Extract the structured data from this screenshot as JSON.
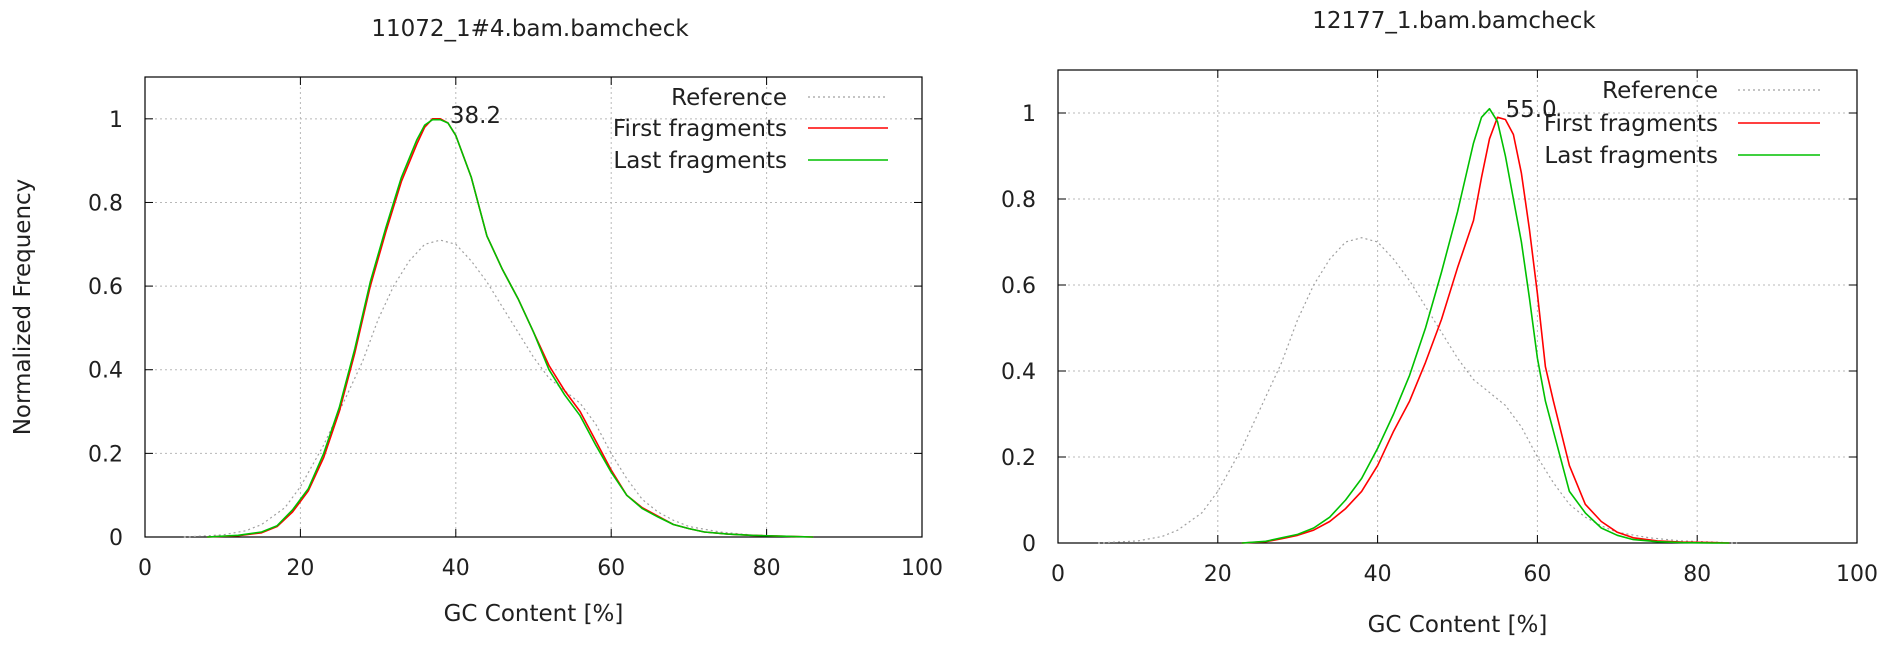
{
  "chart_data": [
    {
      "type": "line",
      "title": "11072_1#4.bam.bamcheck",
      "xlabel": "GC Content [%]",
      "ylabel": "Normalized Frequency",
      "xlim": [
        0,
        100
      ],
      "ylim": [
        0,
        1.1
      ],
      "xticks": [
        0,
        20,
        40,
        60,
        80,
        100
      ],
      "yticks": [
        0,
        0.2,
        0.4,
        0.6,
        0.8,
        1
      ],
      "ytick_labels": [
        "0",
        "0.2",
        "0.4",
        "0.6",
        "0.8",
        "1"
      ],
      "grid": true,
      "legend_position": "top-right",
      "annotation": {
        "text": "38.2",
        "x": 38.2,
        "y": 1.0
      },
      "series": [
        {
          "name": "Reference",
          "color": "#a0a0a0",
          "dash": "dotted",
          "x": [
            5,
            10,
            13,
            15,
            18,
            20,
            23,
            25,
            28,
            30,
            32,
            34,
            36,
            38,
            40,
            42,
            44,
            46,
            48,
            50,
            52,
            54,
            56,
            58,
            60,
            62,
            64,
            66,
            68,
            70,
            74,
            78,
            82,
            85
          ],
          "y": [
            0,
            0.005,
            0.015,
            0.03,
            0.07,
            0.12,
            0.22,
            0.3,
            0.42,
            0.52,
            0.6,
            0.66,
            0.7,
            0.71,
            0.7,
            0.66,
            0.61,
            0.55,
            0.49,
            0.43,
            0.38,
            0.35,
            0.32,
            0.27,
            0.2,
            0.14,
            0.09,
            0.06,
            0.04,
            0.025,
            0.012,
            0.005,
            0.002,
            0
          ]
        },
        {
          "name": "First fragments",
          "color": "#ff0000",
          "x": [
            8,
            12,
            15,
            17,
            19,
            21,
            23,
            25,
            27,
            29,
            31,
            33,
            35,
            36,
            37,
            38,
            39,
            40,
            42,
            44,
            46,
            48,
            50,
            52,
            54,
            56,
            58,
            60,
            62,
            64,
            66,
            68,
            70,
            72,
            75,
            78,
            82,
            86
          ],
          "y": [
            0,
            0.003,
            0.01,
            0.025,
            0.06,
            0.11,
            0.19,
            0.3,
            0.44,
            0.6,
            0.73,
            0.85,
            0.94,
            0.98,
            1.0,
            1.0,
            0.99,
            0.96,
            0.86,
            0.72,
            0.64,
            0.57,
            0.49,
            0.41,
            0.35,
            0.3,
            0.23,
            0.16,
            0.1,
            0.07,
            0.05,
            0.03,
            0.02,
            0.012,
            0.007,
            0.004,
            0.002,
            0
          ]
        },
        {
          "name": "Last fragments",
          "color": "#00c000",
          "x": [
            8,
            12,
            15,
            17,
            19,
            21,
            23,
            25,
            27,
            29,
            31,
            33,
            35,
            36,
            37,
            38,
            39,
            40,
            42,
            44,
            46,
            48,
            50,
            52,
            54,
            56,
            58,
            60,
            62,
            64,
            66,
            68,
            70,
            72,
            75,
            78,
            82,
            86
          ],
          "y": [
            0,
            0.004,
            0.012,
            0.027,
            0.065,
            0.115,
            0.2,
            0.31,
            0.45,
            0.61,
            0.74,
            0.86,
            0.95,
            0.985,
            0.998,
            0.998,
            0.99,
            0.96,
            0.86,
            0.72,
            0.64,
            0.57,
            0.49,
            0.4,
            0.34,
            0.29,
            0.22,
            0.155,
            0.1,
            0.068,
            0.048,
            0.03,
            0.02,
            0.012,
            0.007,
            0.004,
            0.002,
            0
          ]
        }
      ]
    },
    {
      "type": "line",
      "title": "12177_1.bam.bamcheck",
      "xlabel": "GC Content [%]",
      "ylabel": "",
      "xlim": [
        0,
        100
      ],
      "ylim": [
        0,
        1.1
      ],
      "xticks": [
        0,
        20,
        40,
        60,
        80,
        100
      ],
      "yticks": [
        0,
        0.2,
        0.4,
        0.6,
        0.8,
        1
      ],
      "ytick_labels": [
        "0",
        "0.2",
        "0.4",
        "0.6",
        "0.8",
        "1"
      ],
      "grid": true,
      "legend_position": "top-right",
      "annotation": {
        "text": "55.0",
        "x": 55.0,
        "y": 1.0
      },
      "series": [
        {
          "name": "Reference",
          "color": "#a0a0a0",
          "dash": "dotted",
          "x": [
            5,
            10,
            13,
            15,
            18,
            20,
            23,
            25,
            28,
            30,
            32,
            34,
            36,
            38,
            40,
            42,
            44,
            46,
            48,
            50,
            52,
            54,
            56,
            58,
            60,
            62,
            64,
            66,
            68,
            70,
            74,
            78,
            82,
            85
          ],
          "y": [
            0,
            0.005,
            0.015,
            0.03,
            0.07,
            0.12,
            0.22,
            0.3,
            0.42,
            0.52,
            0.6,
            0.66,
            0.7,
            0.71,
            0.7,
            0.66,
            0.61,
            0.55,
            0.49,
            0.43,
            0.38,
            0.35,
            0.32,
            0.27,
            0.2,
            0.14,
            0.09,
            0.06,
            0.04,
            0.025,
            0.012,
            0.005,
            0.002,
            0
          ]
        },
        {
          "name": "First fragments",
          "color": "#ff0000",
          "x": [
            23,
            26,
            28,
            30,
            32,
            34,
            36,
            38,
            40,
            42,
            44,
            46,
            48,
            50,
            52,
            53,
            54,
            55,
            56,
            57,
            58,
            59,
            60,
            61,
            62,
            64,
            66,
            68,
            70,
            72,
            75,
            78,
            82,
            84
          ],
          "y": [
            0,
            0.003,
            0.01,
            0.018,
            0.03,
            0.05,
            0.08,
            0.12,
            0.18,
            0.26,
            0.33,
            0.42,
            0.52,
            0.64,
            0.75,
            0.85,
            0.94,
            0.99,
            0.985,
            0.95,
            0.86,
            0.73,
            0.58,
            0.41,
            0.33,
            0.18,
            0.09,
            0.05,
            0.025,
            0.012,
            0.005,
            0.002,
            0.001,
            0
          ]
        },
        {
          "name": "Last fragments",
          "color": "#00c000",
          "x": [
            23,
            26,
            28,
            30,
            32,
            34,
            36,
            38,
            40,
            42,
            44,
            46,
            48,
            50,
            51,
            52,
            53,
            54,
            55,
            56,
            57,
            58,
            59,
            60,
            61,
            62,
            64,
            66,
            68,
            70,
            72,
            75,
            78,
            82,
            84
          ],
          "y": [
            0,
            0.004,
            0.012,
            0.02,
            0.035,
            0.06,
            0.1,
            0.15,
            0.22,
            0.3,
            0.39,
            0.5,
            0.63,
            0.77,
            0.85,
            0.93,
            0.99,
            1.01,
            0.98,
            0.9,
            0.8,
            0.7,
            0.57,
            0.43,
            0.33,
            0.26,
            0.12,
            0.07,
            0.035,
            0.018,
            0.008,
            0.003,
            0.001,
            0,
            0
          ]
        }
      ]
    }
  ]
}
